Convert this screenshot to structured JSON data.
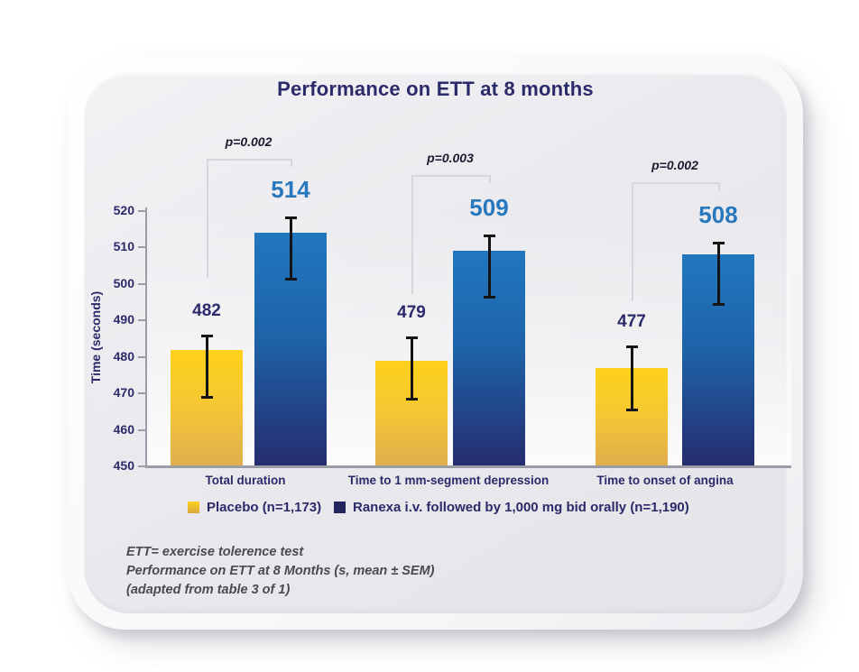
{
  "title": "Performance on ETT at 8 months",
  "chart_data": {
    "type": "bar",
    "title": "Performance on ETT at 8 months",
    "categories": [
      "Total duration",
      "Time to 1 mm-segment depression",
      "Time to onset of angina"
    ],
    "series": [
      {
        "name": "Placebo (n=1,173)",
        "values": [
          482,
          479,
          477
        ],
        "error_low": [
          468.5,
          468,
          465
        ],
        "error_high": [
          486,
          485.5,
          483
        ],
        "bar_gradient_top": "#fdd11a",
        "bar_gradient_mid": "#f6c832",
        "bar_gradient_bottom": "#dfae4e",
        "legend_swatch": "#d9a93e",
        "value_label_color": "#2b2a6a"
      },
      {
        "name": "Ranexa i.v. followed by 1,000 mg bid orally (n=1,190)",
        "values": [
          514,
          509,
          508
        ],
        "error_low": [
          501,
          496,
          494
        ],
        "error_high": [
          518.5,
          513.5,
          511.5
        ],
        "bar_gradient_top": "#2177bf",
        "bar_gradient_mid": "#1e63a8",
        "bar_gradient_bottom": "#252c6e",
        "legend_swatch": "#24245e",
        "value_label_color": "#2878be"
      }
    ],
    "p_values": [
      "p=0.002",
      "p=0.003",
      "p=0.002"
    ],
    "ylabel": "Time (seconds)",
    "yticks": [
      450,
      460,
      470,
      480,
      490,
      500,
      510,
      520
    ],
    "ylim": [
      450,
      520
    ],
    "grid": false,
    "legend_position": "bottom",
    "error_bar_note": "mean ± SEM"
  },
  "footnotes": [
    "ETT= exercise tolerence test",
    "Performance on ETT at 8 Months (s, mean ± SEM)",
    "(adapted from table 3 of 1)"
  ],
  "colors": {
    "navy_text": "#2b2a6a",
    "ranexa_value_blue": "#2878be",
    "placebo_gold": "#d9a93e",
    "ranexa_navy": "#24245e",
    "bracket_gray": "#d7d7db",
    "axis_gray": "#9c9ca4",
    "error_bar_black": "#141414",
    "footnote_gray": "#4b4b4d",
    "card_bg": "#e9e9ed",
    "page_bg": "#ffffff"
  }
}
